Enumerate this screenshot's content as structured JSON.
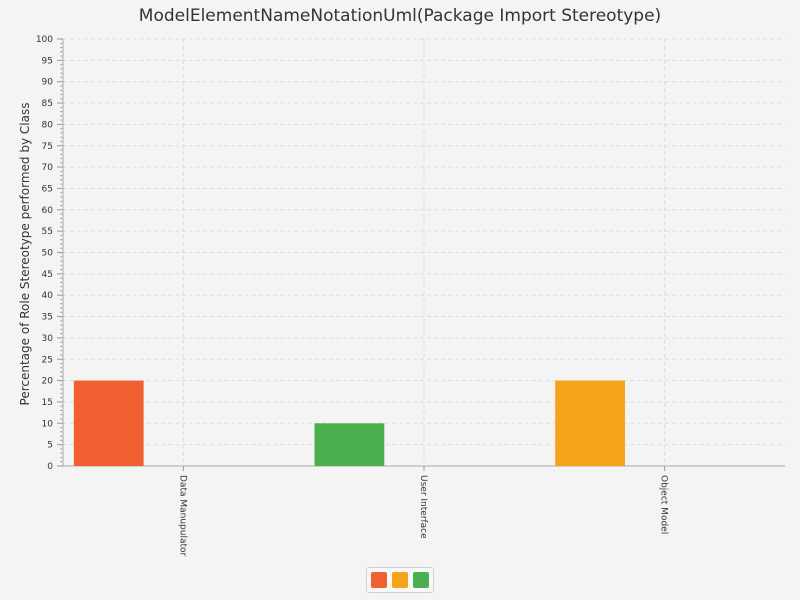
{
  "chart_data": {
    "type": "bar",
    "title": "ModelElementNameNotationUml(Package Import Stereotype)",
    "xlabel": "",
    "ylabel": "Percentage of Role Stereotype performed by Class",
    "ylim": [
      0,
      100
    ],
    "y_major_step": 5,
    "grid": true,
    "legend_position": "bottom",
    "categories": [
      "Data Manupulator",
      "User Interface",
      "Object Model"
    ],
    "values": [
      20,
      10,
      20
    ],
    "colors": [
      "#f06030",
      "#4caf50",
      "#f5a31a"
    ],
    "legend": [
      {
        "name": "",
        "color": "#f06030"
      },
      {
        "name": "",
        "color": "#f5a31a"
      },
      {
        "name": "",
        "color": "#4caf50"
      }
    ]
  }
}
